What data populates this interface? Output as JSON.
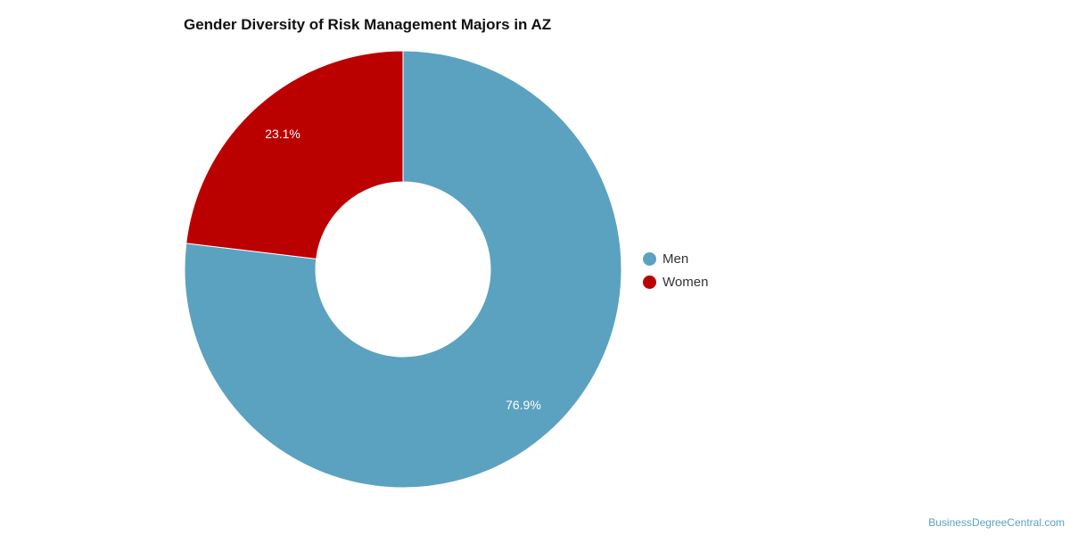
{
  "chart_data": {
    "type": "pie",
    "title": "Gender Diversity of Risk Management Majors in AZ",
    "categories": [
      "Men",
      "Women"
    ],
    "values": [
      76.9,
      23.1
    ],
    "labels": [
      "76.9%",
      "23.1%"
    ],
    "colors": [
      "#5ba2c0",
      "#bb0000"
    ],
    "donut": true,
    "legend": "right"
  },
  "credit": "BusinessDegreeCentral.com"
}
